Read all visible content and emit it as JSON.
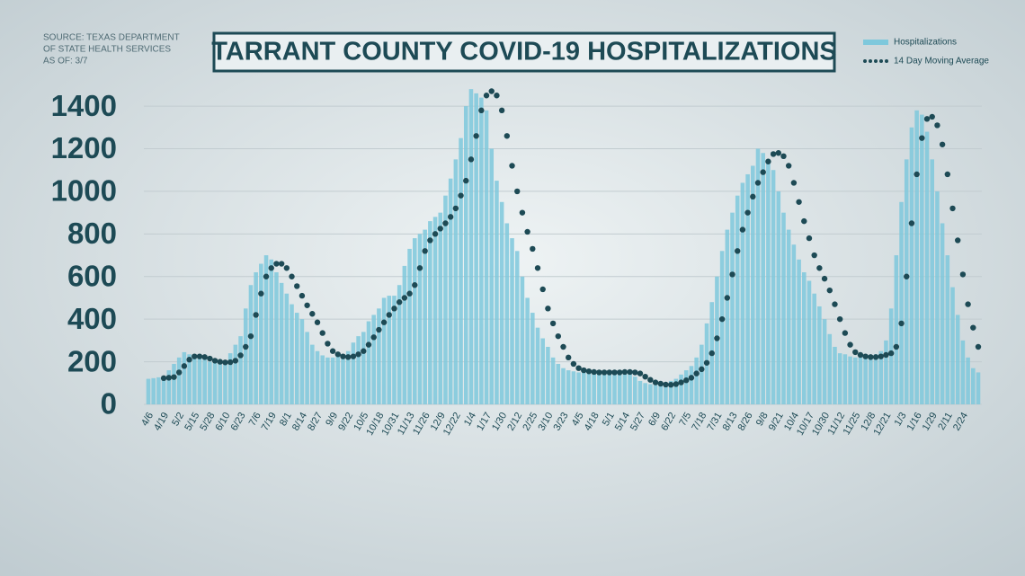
{
  "chart_data": {
    "type": "bar",
    "title": "TARRANT COUNTY COVID-19 HOSPITALIZATIONS",
    "source": [
      "SOURCE: TEXAS DEPARTMENT",
      "OF STATE HEALTH SERVICES",
      "AS OF: 3/7"
    ],
    "categories": [
      "4/6",
      null,
      null,
      "4/19",
      null,
      null,
      "5/2",
      null,
      null,
      "5/15",
      null,
      null,
      "5/28",
      null,
      null,
      "6/10",
      null,
      null,
      "6/23",
      null,
      null,
      "7/6",
      null,
      null,
      "7/19",
      null,
      null,
      "8/1",
      null,
      null,
      "8/14",
      null,
      null,
      "8/27",
      null,
      null,
      "9/9",
      null,
      null,
      "9/22",
      null,
      null,
      "10/5",
      null,
      null,
      "10/18",
      null,
      null,
      "10/31",
      null,
      null,
      "11/13",
      null,
      null,
      "11/26",
      null,
      null,
      "12/9",
      null,
      null,
      "12/22",
      null,
      null,
      "1/4",
      null,
      null,
      "1/17",
      null,
      null,
      "1/30",
      null,
      null,
      "2/12",
      null,
      null,
      "2/25",
      null,
      null,
      "3/10",
      null,
      null,
      "3/23",
      null,
      null,
      "4/5",
      null,
      null,
      "4/18",
      null,
      null,
      "5/1",
      null,
      null,
      "5/14",
      null,
      null,
      "5/27",
      null,
      null,
      "6/9",
      null,
      null,
      "6/22",
      null,
      null,
      "7/5",
      null,
      null,
      "7/18",
      null,
      null,
      "7/31",
      null,
      null,
      "8/13",
      null,
      null,
      "8/26",
      null,
      null,
      "9/8",
      null,
      null,
      "9/21",
      null,
      null,
      "10/4",
      null,
      null,
      "10/17",
      null,
      null,
      "10/30",
      null,
      null,
      "11/12",
      null,
      null,
      "11/25",
      null,
      null,
      "12/8",
      null,
      null,
      "12/21",
      null,
      null,
      "1/3",
      null,
      null,
      "1/16",
      null,
      null,
      "1/29",
      null,
      null,
      "2/11",
      null,
      null,
      "2/24",
      null,
      null,
      null
    ],
    "series": [
      {
        "name": "Hospitalizations",
        "type": "bar",
        "color": "#7ec8dc",
        "values": [
          120,
          123,
          127,
          130,
          160,
          190,
          220,
          245,
          235,
          230,
          220,
          210,
          200,
          195,
          200,
          205,
          240,
          280,
          320,
          450,
          560,
          620,
          660,
          700,
          680,
          620,
          570,
          520,
          470,
          430,
          400,
          340,
          280,
          250,
          230,
          220,
          220,
          225,
          235,
          250,
          290,
          320,
          340,
          390,
          420,
          450,
          500,
          510,
          510,
          560,
          650,
          730,
          780,
          800,
          820,
          860,
          880,
          900,
          980,
          1060,
          1150,
          1250,
          1400,
          1480,
          1460,
          1440,
          1380,
          1200,
          1050,
          950,
          850,
          780,
          720,
          600,
          500,
          430,
          360,
          310,
          270,
          220,
          190,
          170,
          160,
          155,
          150,
          150,
          150,
          150,
          150,
          145,
          150,
          155,
          150,
          150,
          145,
          130,
          110,
          100,
          95,
          90,
          90,
          100,
          110,
          120,
          140,
          160,
          180,
          220,
          280,
          380,
          480,
          600,
          720,
          820,
          900,
          980,
          1040,
          1080,
          1120,
          1200,
          1180,
          1150,
          1100,
          1000,
          900,
          820,
          750,
          680,
          620,
          580,
          520,
          460,
          400,
          330,
          270,
          240,
          235,
          225,
          220,
          220,
          225,
          230,
          235,
          250,
          300,
          450,
          700,
          950,
          1150,
          1300,
          1380,
          1360,
          1280,
          1150,
          1000,
          850,
          700,
          550,
          420,
          300,
          220,
          170,
          150
        ]
      },
      {
        "name": "14 Day Moving Average",
        "type": "dots",
        "color": "#1d4a55",
        "values": [
          null,
          null,
          null,
          123,
          125,
          128,
          150,
          180,
          210,
          225,
          225,
          222,
          215,
          205,
          200,
          197,
          198,
          205,
          230,
          270,
          320,
          420,
          520,
          600,
          640,
          660,
          660,
          640,
          600,
          555,
          510,
          465,
          425,
          385,
          335,
          285,
          250,
          235,
          225,
          222,
          225,
          235,
          250,
          280,
          315,
          350,
          385,
          420,
          450,
          480,
          500,
          520,
          560,
          640,
          720,
          770,
          800,
          825,
          850,
          880,
          920,
          980,
          1050,
          1150,
          1260,
          1380,
          1450,
          1470,
          1450,
          1380,
          1260,
          1120,
          1000,
          900,
          810,
          730,
          640,
          540,
          450,
          380,
          320,
          270,
          220,
          190,
          170,
          160,
          155,
          152,
          150,
          150,
          150,
          150,
          150,
          152,
          152,
          150,
          145,
          130,
          115,
          103,
          97,
          93,
          92,
          95,
          103,
          113,
          125,
          145,
          165,
          195,
          240,
          310,
          400,
          500,
          610,
          720,
          820,
          900,
          975,
          1040,
          1090,
          1140,
          1175,
          1180,
          1165,
          1120,
          1040,
          950,
          860,
          780,
          700,
          640,
          590,
          535,
          470,
          400,
          335,
          280,
          245,
          232,
          225,
          222,
          222,
          225,
          232,
          240,
          270,
          380,
          600,
          850,
          1080,
          1250,
          1340,
          1350,
          1310,
          1220,
          1080,
          920,
          770,
          610,
          470,
          360,
          270
        ]
      }
    ],
    "ylim": [
      0,
      1500
    ],
    "yticks": [
      0,
      200,
      400,
      600,
      800,
      1000,
      1200,
      1400
    ],
    "grid": true
  }
}
